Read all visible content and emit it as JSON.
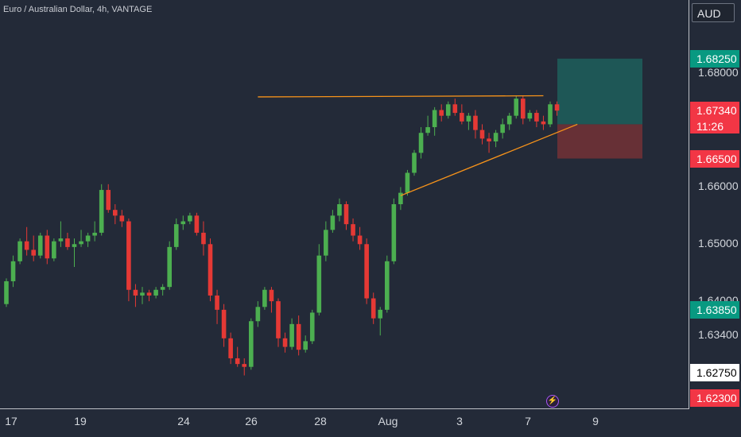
{
  "header": {
    "title": "Euro / Australian Dollar, 4h, VANTAGE",
    "currency": "AUD"
  },
  "colors": {
    "bg": "#232a38",
    "up": "#4caf50",
    "down": "#e53935",
    "trend": "#f7931a",
    "target": "#1e5c5a",
    "stop": "#6b3036"
  },
  "price_axis": {
    "ticks": [
      {
        "label": "1.68000",
        "price": 1.68
      },
      {
        "label": "1.66000",
        "price": 1.66
      },
      {
        "label": "1.65000",
        "price": 1.65
      },
      {
        "label": "1.64000",
        "price": 1.64
      },
      {
        "label": "1.63400",
        "price": 1.634
      }
    ]
  },
  "price_tags": [
    {
      "label": "1.68250",
      "price": 1.6825,
      "color": "#089981"
    },
    {
      "label": "1.67340",
      "price": 1.6734,
      "color": "#f23645",
      "sub": "11:26"
    },
    {
      "label": "1.66500",
      "price": 1.665,
      "color": "#f23645"
    },
    {
      "label": "1.63850",
      "price": 1.6385,
      "color": "#089981"
    },
    {
      "label": "1.62750",
      "price": 1.6275,
      "color": "#ffffff",
      "text": "#000000"
    },
    {
      "label": "1.62300",
      "price": 1.623,
      "color": "#f23645"
    }
  ],
  "time_axis": [
    "17",
    "19",
    "24",
    "26",
    "28",
    "Aug",
    "3",
    "7",
    "9"
  ],
  "icons": {
    "alert": "lightning-icon"
  },
  "chart_data": {
    "type": "candlestick",
    "title": "Euro / Australian Dollar, 4h, VANTAGE",
    "ylim": [
      1.6215,
      1.6925
    ],
    "candles": [
      [
        1.6395,
        1.644,
        1.639,
        1.6435
      ],
      [
        1.6435,
        1.648,
        1.6425,
        1.647
      ],
      [
        1.647,
        1.651,
        1.6465,
        1.6505
      ],
      [
        1.6505,
        1.653,
        1.648,
        1.649
      ],
      [
        1.649,
        1.6515,
        1.647,
        1.648
      ],
      [
        1.648,
        1.652,
        1.6475,
        1.6515
      ],
      [
        1.6515,
        1.6525,
        1.6465,
        1.6475
      ],
      [
        1.6475,
        1.651,
        1.647,
        1.6505
      ],
      [
        1.6505,
        1.654,
        1.6495,
        1.651
      ],
      [
        1.651,
        1.652,
        1.649,
        1.6495
      ],
      [
        1.6495,
        1.651,
        1.646,
        1.65
      ],
      [
        1.65,
        1.6525,
        1.6495,
        1.6505
      ],
      [
        1.6505,
        1.652,
        1.6495,
        1.6515
      ],
      [
        1.6515,
        1.654,
        1.6505,
        1.652
      ],
      [
        1.652,
        1.6605,
        1.6515,
        1.6595
      ],
      [
        1.6595,
        1.6605,
        1.6555,
        1.656
      ],
      [
        1.656,
        1.657,
        1.6535,
        1.655
      ],
      [
        1.655,
        1.656,
        1.653,
        1.654
      ],
      [
        1.654,
        1.6545,
        1.64,
        1.642
      ],
      [
        1.642,
        1.643,
        1.639,
        1.641
      ],
      [
        1.641,
        1.6425,
        1.6395,
        1.6415
      ],
      [
        1.6415,
        1.642,
        1.64,
        1.641
      ],
      [
        1.641,
        1.6425,
        1.6405,
        1.642
      ],
      [
        1.642,
        1.643,
        1.641,
        1.6425
      ],
      [
        1.6425,
        1.6505,
        1.642,
        1.6495
      ],
      [
        1.6495,
        1.6545,
        1.649,
        1.6535
      ],
      [
        1.6535,
        1.655,
        1.6525,
        1.654
      ],
      [
        1.654,
        1.6555,
        1.6535,
        1.655
      ],
      [
        1.655,
        1.6555,
        1.6515,
        1.652
      ],
      [
        1.652,
        1.654,
        1.648,
        1.65
      ],
      [
        1.65,
        1.651,
        1.64,
        1.641
      ],
      [
        1.641,
        1.642,
        1.636,
        1.6385
      ],
      [
        1.6385,
        1.6395,
        1.632,
        1.6335
      ],
      [
        1.6335,
        1.6345,
        1.629,
        1.63
      ],
      [
        1.63,
        1.632,
        1.6285,
        1.629
      ],
      [
        1.629,
        1.63,
        1.627,
        1.6285
      ],
      [
        1.6285,
        1.637,
        1.628,
        1.6365
      ],
      [
        1.6365,
        1.64,
        1.6355,
        1.639
      ],
      [
        1.639,
        1.6425,
        1.6385,
        1.642
      ],
      [
        1.642,
        1.6425,
        1.638,
        1.64
      ],
      [
        1.64,
        1.6405,
        1.632,
        1.6335
      ],
      [
        1.6335,
        1.6345,
        1.631,
        1.632
      ],
      [
        1.632,
        1.637,
        1.6315,
        1.636
      ],
      [
        1.636,
        1.6375,
        1.6305,
        1.6315
      ],
      [
        1.6315,
        1.634,
        1.631,
        1.633
      ],
      [
        1.633,
        1.6385,
        1.6325,
        1.638
      ],
      [
        1.638,
        1.65,
        1.6375,
        1.648
      ],
      [
        1.648,
        1.654,
        1.647,
        1.6525
      ],
      [
        1.6525,
        1.656,
        1.652,
        1.655
      ],
      [
        1.655,
        1.658,
        1.654,
        1.657
      ],
      [
        1.657,
        1.6575,
        1.6525,
        1.6535
      ],
      [
        1.6535,
        1.6545,
        1.6505,
        1.6515
      ],
      [
        1.6515,
        1.653,
        1.649,
        1.65
      ],
      [
        1.65,
        1.651,
        1.6395,
        1.6405
      ],
      [
        1.6405,
        1.6415,
        1.636,
        1.637
      ],
      [
        1.637,
        1.639,
        1.634,
        1.6385
      ],
      [
        1.6385,
        1.648,
        1.638,
        1.647
      ],
      [
        1.647,
        1.658,
        1.6465,
        1.657
      ],
      [
        1.657,
        1.66,
        1.656,
        1.659
      ],
      [
        1.659,
        1.663,
        1.6585,
        1.6625
      ],
      [
        1.6625,
        1.6665,
        1.662,
        1.666
      ],
      [
        1.666,
        1.6705,
        1.665,
        1.6695
      ],
      [
        1.6695,
        1.6725,
        1.669,
        1.6705
      ],
      [
        1.6705,
        1.674,
        1.669,
        1.6735
      ],
      [
        1.6735,
        1.6745,
        1.6715,
        1.6725
      ],
      [
        1.6725,
        1.675,
        1.672,
        1.6745
      ],
      [
        1.6745,
        1.6755,
        1.6725,
        1.673
      ],
      [
        1.673,
        1.6745,
        1.671,
        1.6715
      ],
      [
        1.6715,
        1.673,
        1.67,
        1.6725
      ],
      [
        1.6725,
        1.6735,
        1.6685,
        1.67
      ],
      [
        1.67,
        1.671,
        1.6675,
        1.6685
      ],
      [
        1.6685,
        1.6695,
        1.666,
        1.668
      ],
      [
        1.668,
        1.67,
        1.667,
        1.6695
      ],
      [
        1.6695,
        1.672,
        1.6685,
        1.671
      ],
      [
        1.671,
        1.673,
        1.67,
        1.6725
      ],
      [
        1.6725,
        1.676,
        1.672,
        1.6755
      ],
      [
        1.6755,
        1.676,
        1.671,
        1.672
      ],
      [
        1.672,
        1.6735,
        1.6715,
        1.673
      ],
      [
        1.673,
        1.6735,
        1.6705,
        1.6715
      ],
      [
        1.6715,
        1.6725,
        1.67,
        1.671
      ],
      [
        1.671,
        1.675,
        1.6705,
        1.6745
      ],
      [
        1.6745,
        1.675,
        1.6725,
        1.6734
      ]
    ],
    "trendlines": [
      {
        "from": [
          37,
          1.6758
        ],
        "to": [
          79,
          1.676
        ]
      },
      {
        "from": [
          58,
          1.6585
        ],
        "to": [
          84,
          1.671
        ]
      }
    ],
    "position": {
      "entry": 1.671,
      "target": 1.6825,
      "stop": 1.665
    }
  }
}
